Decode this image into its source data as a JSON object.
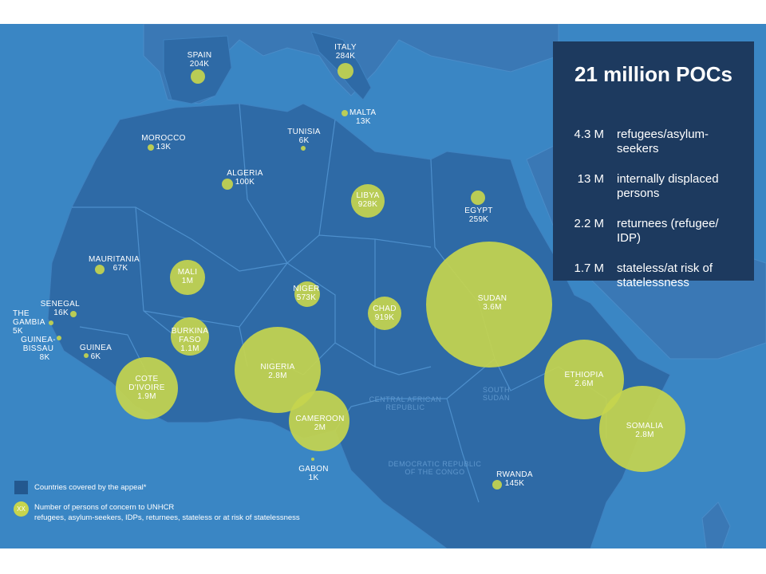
{
  "summary": {
    "title": "21 million POCs",
    "stats": [
      {
        "value": "4.3 M",
        "label": "refugees/asylum-seekers"
      },
      {
        "value": "13 M",
        "label": "internally displaced persons"
      },
      {
        "value": "2.2 M",
        "label": "returnees (refugee/ IDP)"
      },
      {
        "value": "1.7 M",
        "label": "stateless/at risk of statelessness"
      }
    ]
  },
  "countries": [
    {
      "name": "SPAIN",
      "value": "204K",
      "pocs_thousands": 204
    },
    {
      "name": "ITALY",
      "value": "284K",
      "pocs_thousands": 284
    },
    {
      "name": "MALTA",
      "value": "13K",
      "pocs_thousands": 13
    },
    {
      "name": "MOROCCO",
      "value": "13K",
      "pocs_thousands": 13
    },
    {
      "name": "TUNISIA",
      "value": "6K",
      "pocs_thousands": 6
    },
    {
      "name": "ALGERIA",
      "value": "100K",
      "pocs_thousands": 100
    },
    {
      "name": "LIBYA",
      "value": "928K",
      "pocs_thousands": 928
    },
    {
      "name": "EGYPT",
      "value": "259K",
      "pocs_thousands": 259
    },
    {
      "name": "MAURITANIA",
      "value": "67K",
      "pocs_thousands": 67
    },
    {
      "name": "MALI",
      "value": "1M",
      "pocs_thousands": 1000
    },
    {
      "name": "NIGER",
      "value": "573K",
      "pocs_thousands": 573
    },
    {
      "name": "CHAD",
      "value": "919K",
      "pocs_thousands": 919
    },
    {
      "name": "SUDAN",
      "value": "3.6M",
      "pocs_thousands": 3600
    },
    {
      "name": "SENEGAL",
      "value": "16K",
      "pocs_thousands": 16
    },
    {
      "name": "THE GAMBIA",
      "value": "5K",
      "pocs_thousands": 5
    },
    {
      "name": "GUINEA-BISSAU",
      "value": "8K",
      "pocs_thousands": 8
    },
    {
      "name": "GUINEA",
      "value": "6K",
      "pocs_thousands": 6
    },
    {
      "name": "BURKINA FASO",
      "value": "1.1M",
      "pocs_thousands": 1100
    },
    {
      "name": "COTE D'IVOIRE",
      "value": "1.9M",
      "pocs_thousands": 1900
    },
    {
      "name": "NIGERIA",
      "value": "2.8M",
      "pocs_thousands": 2800
    },
    {
      "name": "CAMEROON",
      "value": "2M",
      "pocs_thousands": 2000
    },
    {
      "name": "GABON",
      "value": "1K",
      "pocs_thousands": 1
    },
    {
      "name": "ETHIOPIA",
      "value": "2.6M",
      "pocs_thousands": 2600
    },
    {
      "name": "SOMALIA",
      "value": "2.8M",
      "pocs_thousands": 2800
    },
    {
      "name": "RWANDA",
      "value": "145K",
      "pocs_thousands": 145
    }
  ],
  "background_labels": [
    "CENTRAL AFRICAN REPUBLIC",
    "DEMOCRATIC REPUBLIC OF THE CONGO",
    "SOUTH SUDAN"
  ],
  "legend": {
    "countries_label": "Countries covered by the appeal*",
    "dot_symbol": "XX",
    "dot_label": "Number of persons of concern to UNHCR",
    "dot_sublabel": "refugees, asylum-seekers, IDPs, returnees, stateless or at risk of statelessness"
  },
  "colors": {
    "sea": "#3a86c4",
    "land": "#2e6aa6",
    "bubble": "#c6d54e",
    "summary_box": "#1d3a5f"
  }
}
